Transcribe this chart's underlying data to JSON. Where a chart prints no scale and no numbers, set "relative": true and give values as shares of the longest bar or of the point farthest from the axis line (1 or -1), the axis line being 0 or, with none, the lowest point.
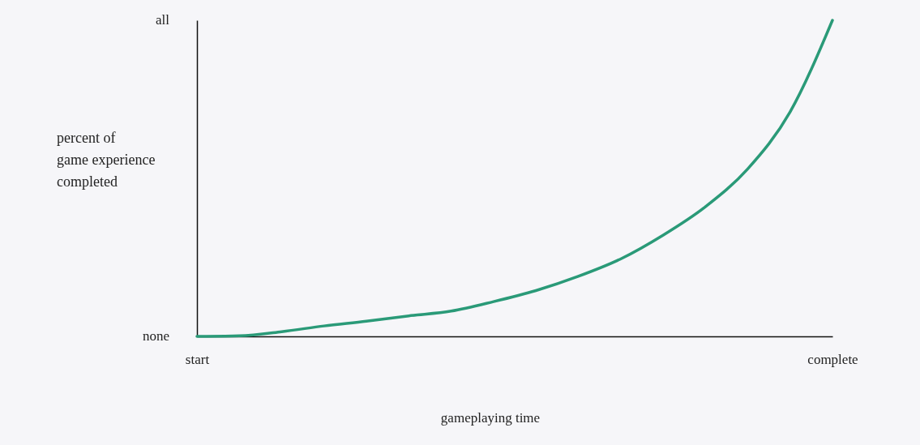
{
  "chart_data": {
    "type": "line",
    "xlabel": "gameplaying time",
    "ylabel": "percent of game experience completed",
    "relative": true,
    "categories": [
      "start",
      null,
      null,
      null,
      null,
      null,
      null,
      null,
      null,
      null,
      null,
      null,
      null,
      null,
      null,
      "complete"
    ],
    "annotations": [
      "none",
      "all"
    ],
    "series": [
      {
        "color": "#2a9a78",
        "values": [
          0,
          0.002,
          0.015,
          0.033,
          0.048,
          0.065,
          0.08,
          0.11,
          0.145,
          0.19,
          0.245,
          0.32,
          0.41,
          0.53,
          0.71,
          1
        ]
      }
    ],
    "marker": "none",
    "line_style": "solid"
  }
}
